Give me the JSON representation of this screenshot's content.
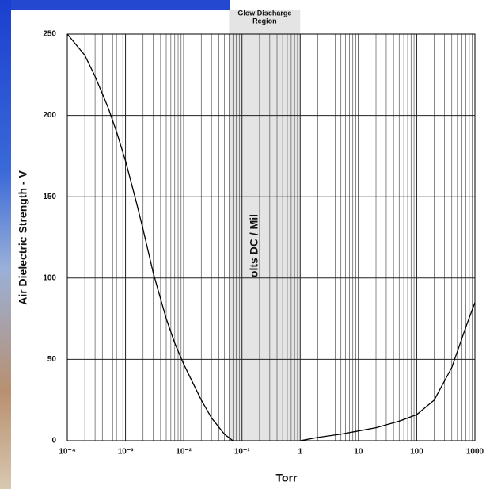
{
  "chart_data": {
    "type": "line",
    "xlabel": "Torr",
    "ylabel": "Air Dielectric Strength - V",
    "annotations": [
      "olts DC / Mil"
    ],
    "region": {
      "lines": [
        "Glow Discharge",
        "Region"
      ],
      "range": [
        0.06,
        1
      ],
      "color": "#e4e4e4"
    },
    "xscale": "log",
    "grid": true,
    "minor_grid": true,
    "xlim": [
      0.0001,
      1000
    ],
    "ylim": [
      0,
      250
    ],
    "xticks": [
      {
        "value": 0.0001,
        "label": "10⁻⁴"
      },
      {
        "value": 0.001,
        "label": "10⁻³"
      },
      {
        "value": 0.01,
        "label": "10⁻²"
      },
      {
        "value": 0.1,
        "label": "10⁻¹"
      },
      1,
      10,
      100,
      1000
    ],
    "yticks": [
      0,
      50,
      100,
      150,
      200,
      250
    ],
    "series": [
      {
        "color": "#000000",
        "x": [
          0.0001,
          0.0002,
          0.0003,
          0.0005,
          0.0007,
          0.001,
          0.0015,
          0.002,
          0.003,
          0.005,
          0.007,
          0.01,
          0.02,
          0.03,
          0.05,
          0.07
        ],
        "values": [
          250,
          237,
          224,
          205,
          190,
          172,
          148,
          130,
          103,
          75,
          60,
          47,
          25,
          14,
          4,
          0
        ]
      },
      {
        "color": "#000000",
        "x": [
          1,
          2,
          5,
          10,
          20,
          50,
          100,
          200,
          400,
          700,
          1000
        ],
        "values": [
          0,
          2,
          4,
          6,
          8,
          12,
          16,
          25,
          45,
          70,
          85
        ]
      }
    ]
  }
}
